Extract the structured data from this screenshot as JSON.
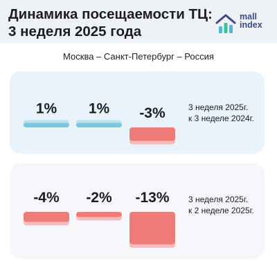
{
  "header": {
    "title_line1": "Динамика посещаемости ТЦ:",
    "title_line2": "3 неделя 2025 года",
    "logo_line1": "mall",
    "logo_line2": "index",
    "logo_icon": "bar-chart-house-icon"
  },
  "subtitle": "Москва – Санкт-Петербург – Россия",
  "colors": {
    "positive": "#7cc6e0",
    "positive_shadow": "#b9e1ef",
    "negative": "#ee7b78",
    "negative_shadow": "#f6bcbc",
    "text": "#1d1d1f",
    "logo_blue": "#3d4a8a",
    "logo_green": "#3cc29a",
    "logo_cyan": "#4fb8d8"
  },
  "chart_data": [
    {
      "type": "bar",
      "categories": [
        "Москва",
        "Санкт-Петербург",
        "Россия"
      ],
      "values": [
        1,
        1,
        -3
      ],
      "labels": [
        "1%",
        "1%",
        "-3%"
      ],
      "legend_line1": "3 неделя 2025г.",
      "legend_line2": "к 3 неделе 2024г."
    },
    {
      "type": "bar",
      "categories": [
        "Москва",
        "Санкт-Петербург",
        "Россия"
      ],
      "values": [
        -4,
        -2,
        -13
      ],
      "labels": [
        "-4%",
        "-2%",
        "-13%"
      ],
      "legend_line1": "3 неделя 2025г.",
      "legend_line2": "к 2 неделе 2025г."
    }
  ]
}
